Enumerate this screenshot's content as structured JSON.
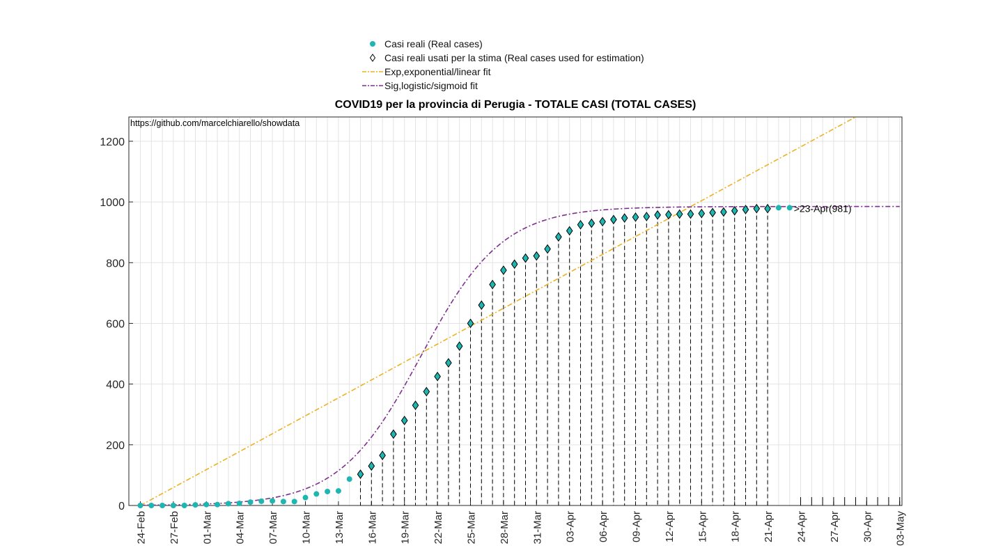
{
  "chart_data": {
    "type": "scatter",
    "title": "COVID19 per la provincia di Perugia - TOTALE CASI (TOTAL CASES)",
    "source_note": "https://github.com/marcelchiarello/showdata",
    "xlabel": "",
    "ylabel": "",
    "ylim": [
      0,
      1280
    ],
    "yticks": [
      0,
      200,
      400,
      600,
      800,
      1000,
      1200
    ],
    "x_tick_labels": [
      "24-Feb",
      "27-Feb",
      "01-Mar",
      "04-Mar",
      "07-Mar",
      "10-Mar",
      "13-Mar",
      "16-Mar",
      "19-Mar",
      "22-Mar",
      "25-Mar",
      "28-Mar",
      "31-Mar",
      "03-Apr",
      "06-Apr",
      "09-Apr",
      "12-Apr",
      "15-Apr",
      "18-Apr",
      "21-Apr",
      "24-Apr",
      "27-Apr",
      "30-Apr",
      "03-May"
    ],
    "x_range_days": [
      0,
      69
    ],
    "x_start_date": "24-Feb",
    "grid": true,
    "legend_position": "top-center",
    "annotation": {
      "text": ">23-Apr(981)",
      "day": 59,
      "value": 981
    },
    "series": [
      {
        "name": "Casi reali (Real cases)",
        "kind": "markers",
        "color": "#1fb5b0",
        "x_days": [
          0,
          1,
          2,
          3,
          4,
          5,
          6,
          7,
          8,
          9,
          10,
          11,
          12,
          13,
          14,
          15,
          16,
          17,
          18,
          19,
          20,
          21,
          22,
          23,
          24,
          25,
          26,
          27,
          28,
          29,
          30,
          31,
          32,
          33,
          34,
          35,
          36,
          37,
          38,
          39,
          40,
          41,
          42,
          43,
          44,
          45,
          46,
          47,
          48,
          49,
          50,
          51,
          52,
          53,
          54,
          55,
          56,
          57,
          58,
          59
        ],
        "values": [
          0,
          0,
          0,
          0,
          0,
          2,
          3,
          3,
          6,
          7,
          11,
          14,
          15,
          13,
          13,
          26,
          38,
          46,
          48,
          87,
          103,
          130,
          165,
          235,
          280,
          330,
          375,
          425,
          470,
          525,
          600,
          660,
          728,
          775,
          795,
          815,
          822,
          845,
          885,
          905,
          925,
          930,
          935,
          942,
          947,
          950,
          952,
          957,
          958,
          960,
          960,
          962,
          965,
          967,
          971,
          975,
          978,
          978,
          981,
          981
        ]
      },
      {
        "name": "Casi reali usati per la stima (Real cases used for estimation)",
        "kind": "diamond",
        "color": "#000000",
        "x_days": [
          20,
          21,
          22,
          23,
          24,
          25,
          26,
          27,
          28,
          29,
          30,
          31,
          32,
          33,
          34,
          35,
          36,
          37,
          38,
          39,
          40,
          41,
          42,
          43,
          44,
          45,
          46,
          47,
          48,
          49,
          50,
          51,
          52,
          53,
          54,
          55,
          56,
          57
        ],
        "values": [
          103,
          130,
          165,
          235,
          280,
          330,
          375,
          425,
          470,
          525,
          600,
          660,
          728,
          775,
          795,
          815,
          822,
          845,
          885,
          905,
          925,
          930,
          935,
          942,
          947,
          950,
          952,
          957,
          958,
          960,
          960,
          962,
          965,
          967,
          971,
          975,
          978,
          978
        ]
      },
      {
        "name": "Exp,exponential/linear fit",
        "kind": "line",
        "color": "#edb120",
        "x_days": [
          0,
          65
        ],
        "values": [
          0,
          1280
        ]
      },
      {
        "name": "Sig,logistic/sigmoid fit",
        "kind": "line",
        "color": "#7e2f8e",
        "logistic": {
          "L": 985,
          "k": 0.27,
          "x0": 25.5
        },
        "x_days_range": [
          0,
          69
        ]
      }
    ]
  }
}
